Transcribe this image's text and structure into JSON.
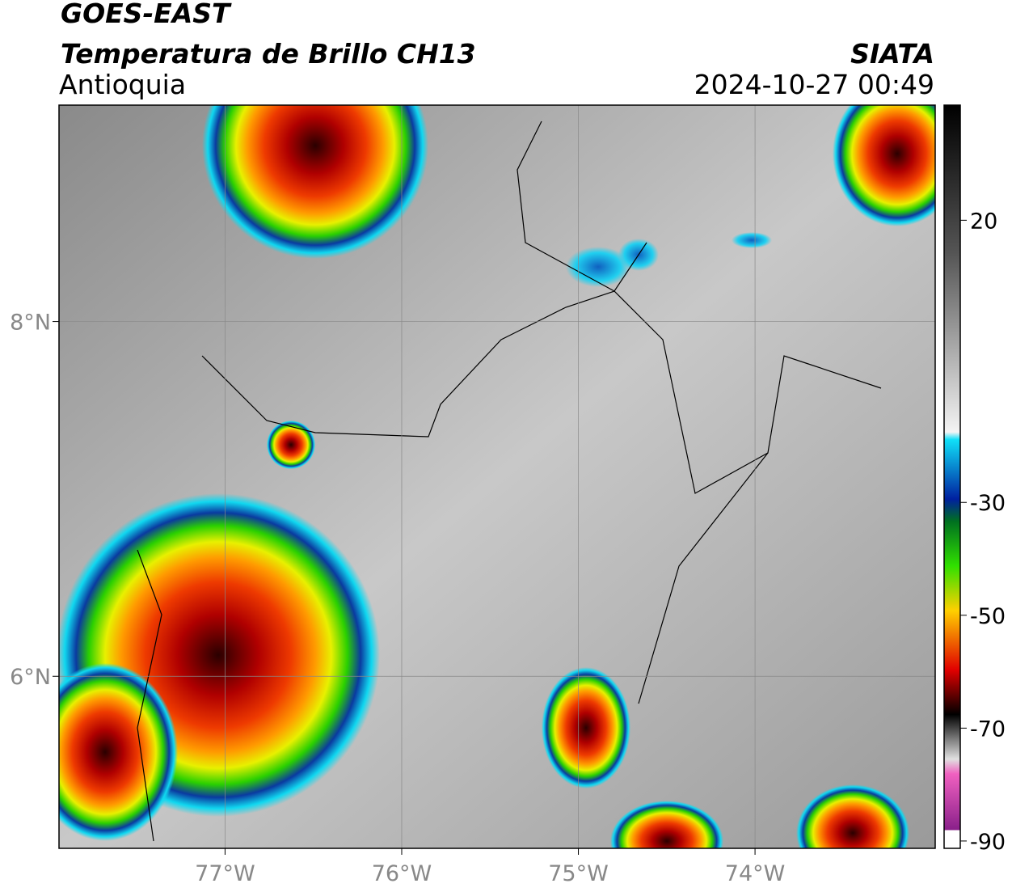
{
  "header": {
    "title": "GOES-EAST",
    "subtitle": "Temperatura de Brillo CH13",
    "region": "Antioquia",
    "source": "SIATA",
    "datetime": "2024-10-27 00:49"
  },
  "map": {
    "xlim": [
      -77.94,
      -72.98
    ],
    "ylim": [
      5.03,
      9.22
    ],
    "xticks": [
      {
        "value": -77,
        "label": "77°W"
      },
      {
        "value": -76,
        "label": "76°W"
      },
      {
        "value": -75,
        "label": "75°W"
      },
      {
        "value": -74,
        "label": "74°W"
      }
    ],
    "yticks": [
      {
        "value": 8,
        "label": "8°N"
      },
      {
        "value": 6,
        "label": "6°N"
      }
    ],
    "grid": true
  },
  "colorbar": {
    "lim": [
      -91.3,
      40.4
    ],
    "ticks": [
      20,
      -30,
      -50,
      -70,
      -90
    ]
  }
}
